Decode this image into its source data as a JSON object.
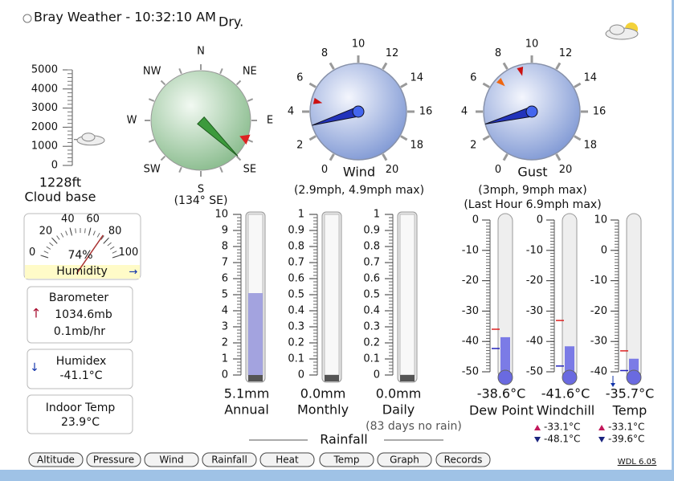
{
  "header": {
    "title": "Bray Weather - 10:32:10 AM",
    "condition": "Dry."
  },
  "cloud_base": {
    "ticks": [
      5000,
      4000,
      3000,
      2000,
      1000,
      0
    ],
    "level": 1228,
    "value_text": "1228ft",
    "label": "Cloud base"
  },
  "compass": {
    "points": [
      "N",
      "NE",
      "E",
      "SE",
      "S",
      "SW",
      "W",
      "NW"
    ],
    "direction": 134,
    "reading": "(134° SE)"
  },
  "wind": {
    "ticks": [
      0,
      2,
      4,
      6,
      8,
      10,
      12,
      14,
      16,
      18,
      20
    ],
    "speed": 2.9,
    "max": 4.9,
    "label": "Wind",
    "reading": "(2.9mph, 4.9mph max)"
  },
  "gust": {
    "ticks": [
      0,
      2,
      4,
      6,
      8,
      10,
      12,
      14,
      16,
      18,
      20
    ],
    "speed": 3,
    "max": 9,
    "last_hour": 6.9,
    "label": "Gust",
    "reading": "(3mph, 9mph max)",
    "last_hour_text": "(Last Hour 6.9mph max)"
  },
  "humidity": {
    "ticks": [
      0,
      20,
      40,
      60,
      80,
      100
    ],
    "value": 74,
    "value_text": "74%",
    "label": "Humidity",
    "trend": "→"
  },
  "barometer": {
    "label": "Barometer",
    "trend": "↑",
    "value": "1034.6mb",
    "rate": "0.1mb/hr"
  },
  "humidex": {
    "label": "Humidex",
    "trend": "↓",
    "value": "-41.1°C"
  },
  "indoor": {
    "label": "Indoor Temp",
    "value": "23.9°C"
  },
  "rainfall": {
    "title": "Rainfall",
    "note": "(83 days no rain)",
    "gauges": [
      {
        "label": "Annual",
        "value_text": "5.1mm",
        "level": 5.1,
        "ticks": [
          0,
          1,
          2,
          3,
          4,
          5,
          6,
          7,
          8,
          9,
          10
        ]
      },
      {
        "label": "Monthly",
        "value_text": "0.0mm",
        "level": 0,
        "ticks": [
          0,
          0.1,
          0.2,
          0.3,
          0.4,
          0.5,
          0.6,
          0.7,
          0.8,
          0.9,
          1
        ]
      },
      {
        "label": "Daily",
        "value_text": "0.0mm",
        "level": 0,
        "ticks": [
          0,
          0.1,
          0.2,
          0.3,
          0.4,
          0.5,
          0.6,
          0.7,
          0.8,
          0.9,
          1
        ]
      }
    ]
  },
  "temperatures": {
    "gauges": [
      {
        "label": "Dew Point",
        "value_text": "-38.6°C",
        "level": -38.6,
        "ticks": [
          0,
          -10,
          -20,
          -30,
          -40,
          -50
        ]
      },
      {
        "label": "Windchill",
        "value_text": "-41.6°C",
        "level": -41.6,
        "ticks": [
          0,
          -10,
          -20,
          -30,
          -40,
          -50
        ],
        "high": -33.1,
        "high_text": "-33.1°C",
        "low": -48.1,
        "low_text": "-48.1°C"
      },
      {
        "label": "Temp",
        "value_text": "-35.7°C",
        "level": -35.7,
        "ticks": [
          10,
          0,
          -10,
          -20,
          -30,
          -40
        ],
        "high": -33.1,
        "high_text": "-33.1°C",
        "low": -39.6,
        "low_text": "-39.6°C"
      }
    ]
  },
  "buttons": [
    "Altitude",
    "Pressure",
    "Wind",
    "Rainfall",
    "Heat",
    "Temp",
    "Graph",
    "Records"
  ],
  "version": "WDL 6.05"
}
